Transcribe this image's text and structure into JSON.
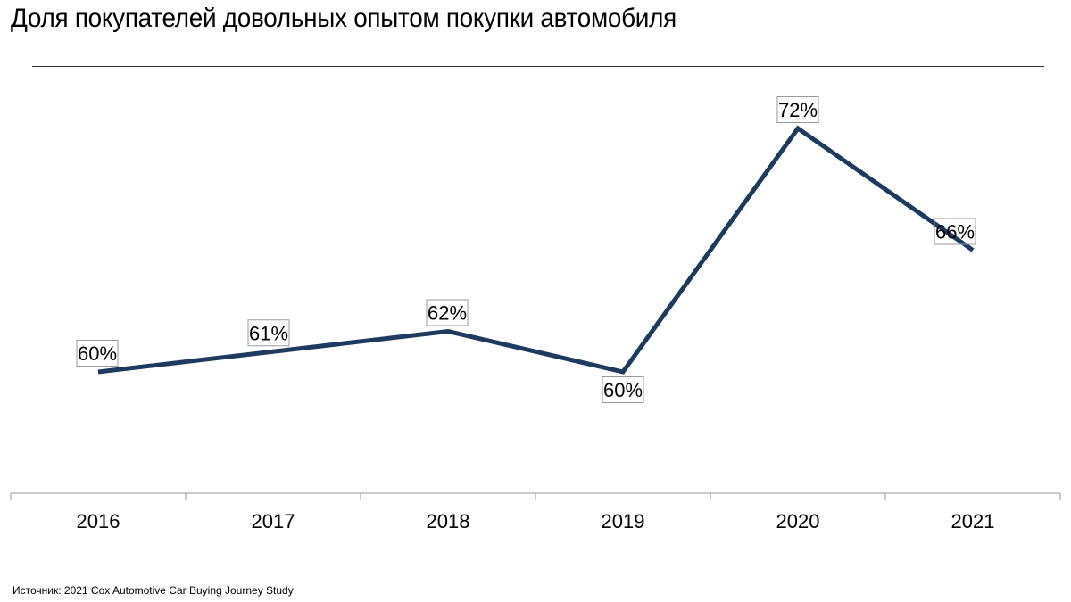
{
  "chart_data": {
    "type": "line",
    "title": "Доля покупателей довольных опытом покупки автомобиля",
    "categories": [
      "2016",
      "2017",
      "2018",
      "2019",
      "2020",
      "2021"
    ],
    "series": [
      {
        "values": [
          60,
          61,
          62,
          60,
          72,
          66
        ],
        "color": "#1f3a5f"
      }
    ],
    "data_labels": [
      "60%",
      "61%",
      "62%",
      "60%",
      "72%",
      "66%"
    ],
    "unit": "%",
    "xlabel": "",
    "ylabel": "",
    "ylim": [
      50,
      75
    ],
    "grid": false,
    "legend": "none"
  },
  "source": "Источник: 2021 Cox Automotive Car Buying Journey Study"
}
